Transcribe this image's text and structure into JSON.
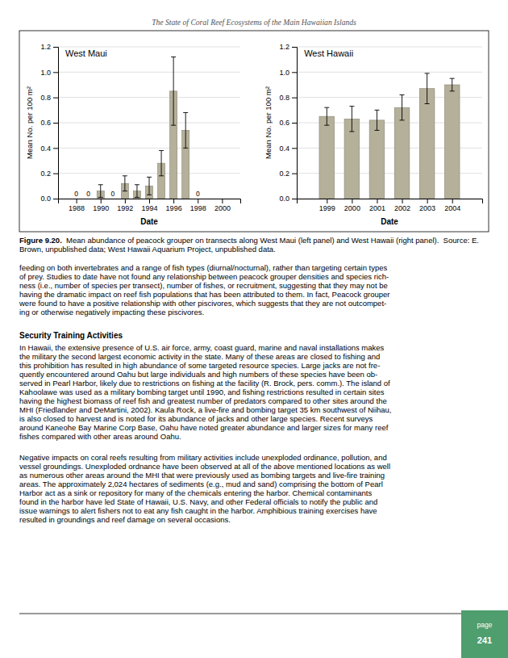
{
  "chart_data": [
    {
      "type": "bar",
      "title": "West Maui",
      "x": [
        1988,
        1989,
        1990,
        1991,
        1992,
        1993,
        1994,
        1995,
        1996,
        1997,
        1998
      ],
      "values": [
        0.0,
        0.0,
        0.06,
        0.0,
        0.12,
        0.06,
        0.1,
        0.28,
        0.85,
        0.54,
        0.0
      ],
      "errors": [
        0.0,
        0.0,
        0.05,
        0.0,
        0.06,
        0.05,
        0.07,
        0.1,
        0.27,
        0.14,
        0.0
      ],
      "value_labels": [
        "0",
        "0",
        null,
        "0",
        null,
        null,
        null,
        null,
        null,
        null,
        "0"
      ],
      "xlabel": "Date",
      "ylabel": "Mean No. per 100 m²",
      "xlim": [
        1986.5,
        2001.5
      ],
      "ylim": [
        0.0,
        1.2
      ],
      "xticks": [
        1988,
        1990,
        1992,
        1994,
        1996,
        1998,
        2000
      ],
      "yticks": [
        {
          "value": 0.0,
          "label": "0.0"
        },
        0.2,
        0.4,
        0.6,
        0.8,
        {
          "value": 1.0,
          "label": "1.0"
        },
        1.2
      ],
      "grid": true,
      "color": "#b5b09a"
    },
    {
      "type": "bar",
      "title": "West Hawaii",
      "x": [
        1999,
        2000,
        2001,
        2002,
        2003,
        2004
      ],
      "values": [
        0.65,
        0.63,
        0.62,
        0.72,
        0.87,
        0.9
      ],
      "errors": [
        0.07,
        0.1,
        0.08,
        0.1,
        0.12,
        0.05
      ],
      "xlabel": "Date",
      "ylabel": "Mean No. per 100 m²",
      "xlim": [
        1997.8,
        2005.2
      ],
      "ylim": [
        0.0,
        1.2
      ],
      "xticks": [
        1999,
        2000,
        2001,
        2002,
        2003,
        2004
      ],
      "yticks": [
        {
          "value": 0.0,
          "label": "0.0"
        },
        0.2,
        0.4,
        0.6,
        0.8,
        {
          "value": 1.0,
          "label": "1.0"
        },
        1.2
      ],
      "grid": true,
      "color": "#b5b09a"
    }
  ],
  "page": {
    "header": "The State of Coral Reef Ecosystems of the Main Hawaiian Islands",
    "caption_bold": "Figure 9.20.",
    "caption_rest": "  Mean abundance of peacock grouper on transects along West Maui (left panel) and West Hawaii (right panel).  Source: E. Brown, unpublished data; West Hawaii Aquarium Project, unpublished data.",
    "body_text1_lines": [
      "feeding on both invertebrates and a range of fish types (diurnal/nocturnal), rather than targeting certain types",
      "of prey.  Studies to date have not found any relationship between peacock grouper densities and species rich-",
      "ness (i.e., number of species per transect), number of fishes, or recruitment, suggesting that they may not be",
      "having the dramatic impact on reef fish populations that has been attributed to them.  In fact, Peacock grouper",
      "were found to have a positive relationship with other piscivores, which suggests that they are not outcompet-",
      "ing or otherwise negatively impacting these piscivores."
    ],
    "section_heading": "Security Training Activities",
    "body_text2_lines": [
      "In Hawaii, the extensive presence of U.S. air force, army, coast guard, marine and naval installations makes",
      "the military the second largest economic activity in the state.  Many of these areas are closed to fishing and",
      "this prohibition has resulted in high abundance of some targeted resource species.  Large jacks are not fre-",
      "quently encountered around Oahu but large individuals and high numbers of these species have been ob-",
      "served in Pearl Harbor, likely due to restrictions on fishing at the facility (R. Brock, pers. comm.).  The island of",
      "Kahoolawe was used as a military bombing target until 1990, and fishing restrictions resulted in certain sites",
      "having the highest biomass of reef fish and greatest number of predators compared to other sites around the",
      "MHI (Friedlander and DeMartini, 2002).  Kaula Rock, a live-fire and bombing target 35 km southwest of Niihau,",
      "is also closed to harvest and is noted for its abundance of jacks and other large species.  Recent surveys",
      "around Kaneohe Bay Marine Corp Base, Oahu have noted greater abundance and larger sizes for many reef",
      "fishes compared with other areas around Oahu."
    ],
    "body_text3_lines": [
      "Negative impacts on coral reefs resulting from military activities include unexploded ordinance, pollution, and",
      "vessel groundings.  Unexploded ordnance have been observed at all of the above mentioned locations as well",
      "as numerous other areas around the MHI that were previously used as bombing targets and live-fire training",
      "areas.  The approximately 2,024 hectares of sediments (e.g., mud and sand) comprising the bottom of Pearl",
      "Harbor act as a sink or repository for many of the chemicals entering the harbor.  Chemical contaminants",
      "found in the harbor have led State of Hawaii, U.S. Navy, and other Federal officials to notify the public and",
      "issue warnings to alert fishers not to eat any fish caught in the harbor.  Amphibious training exercises have",
      "resulted in groundings and reef damage on several occasions."
    ],
    "tab_label": "page",
    "page_number": "241"
  }
}
